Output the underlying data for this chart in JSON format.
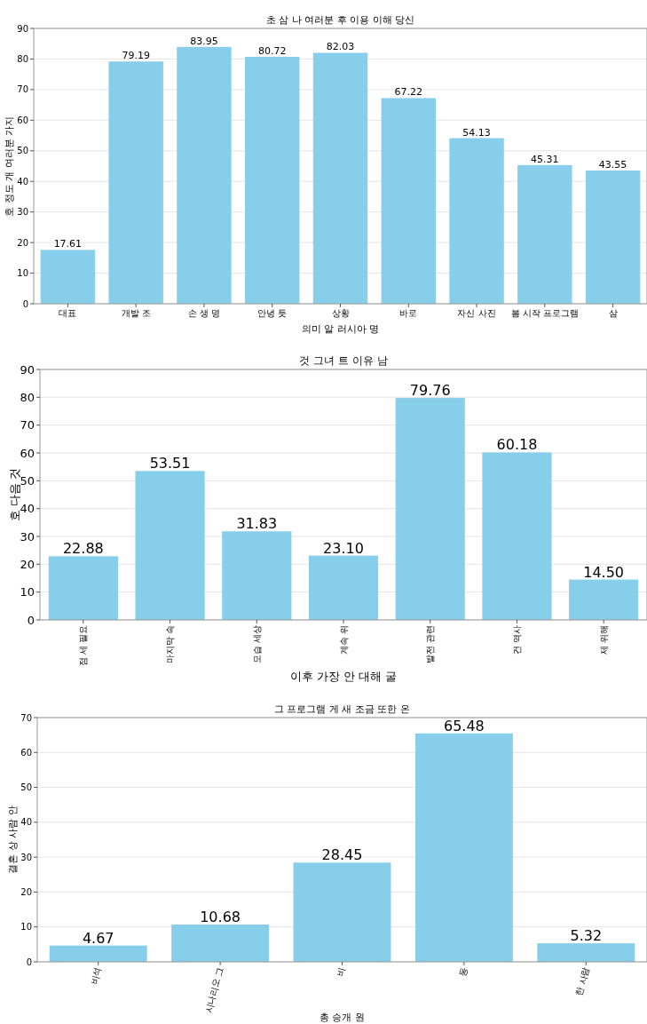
{
  "chart_data": [
    {
      "type": "bar",
      "title": "초 삼 나 여러분 후 이용 이해 당신",
      "xlabel": "의미 알 러시아 명",
      "ylabel": "호 정도 개 여러분 가지",
      "categories": [
        "대표",
        "개발 조",
        "손 생 명",
        "안녕 듯",
        "상황",
        "바로",
        "자신 사진",
        "봄 시작 프로그램",
        "삼"
      ],
      "series": [
        {
          "color": "#87ceeb",
          "values": [
            17.61,
            79.19,
            83.95,
            80.72,
            82.03,
            67.22,
            54.13,
            45.31,
            43.55
          ]
        }
      ],
      "ylim": [
        0,
        90
      ],
      "yticks": [
        0,
        10,
        20,
        30,
        40,
        50,
        60,
        70,
        80,
        90
      ],
      "grid": "y",
      "data_labels": true
    },
    {
      "type": "bar",
      "title": "것 그녀 트 이유 남",
      "xlabel": "이후 가장 안 대해 굴",
      "ylabel": "호 다음 것",
      "categories": [
        "점 세 필요",
        "마지막 속",
        "모습 세상",
        "계속 위",
        "발전 관련",
        "건 역사",
        "제 위해"
      ],
      "series": [
        {
          "color": "#87ceeb",
          "values": [
            22.88,
            53.51,
            31.83,
            23.1,
            79.76,
            60.18,
            14.5
          ],
          "value_labels": [
            "22.88",
            "53.51",
            "31.83",
            "23.10",
            "79.76",
            "60.18",
            "14.50"
          ]
        }
      ],
      "ylim": [
        0,
        90
      ],
      "yticks": [
        0,
        10,
        20,
        30,
        40,
        50,
        60,
        70,
        80,
        90
      ],
      "grid": "y"
    },
    {
      "type": "bar",
      "title": "그 프로그램 게 새 조금 또한 온",
      "xlabel": "총 승개 원",
      "ylabel": "결혼 상 사람 안",
      "categories": [
        "비석",
        "시나리오 그",
        "비",
        "동",
        "한 사람"
      ],
      "series": [
        {
          "color": "#87ceeb",
          "values": [
            4.67,
            10.68,
            28.45,
            65.48,
            5.32
          ]
        }
      ],
      "ylim": [
        0,
        70
      ],
      "yticks": [
        0,
        10,
        20,
        30,
        40,
        50,
        60,
        70
      ],
      "grid": "y",
      "data_labels": true
    }
  ]
}
